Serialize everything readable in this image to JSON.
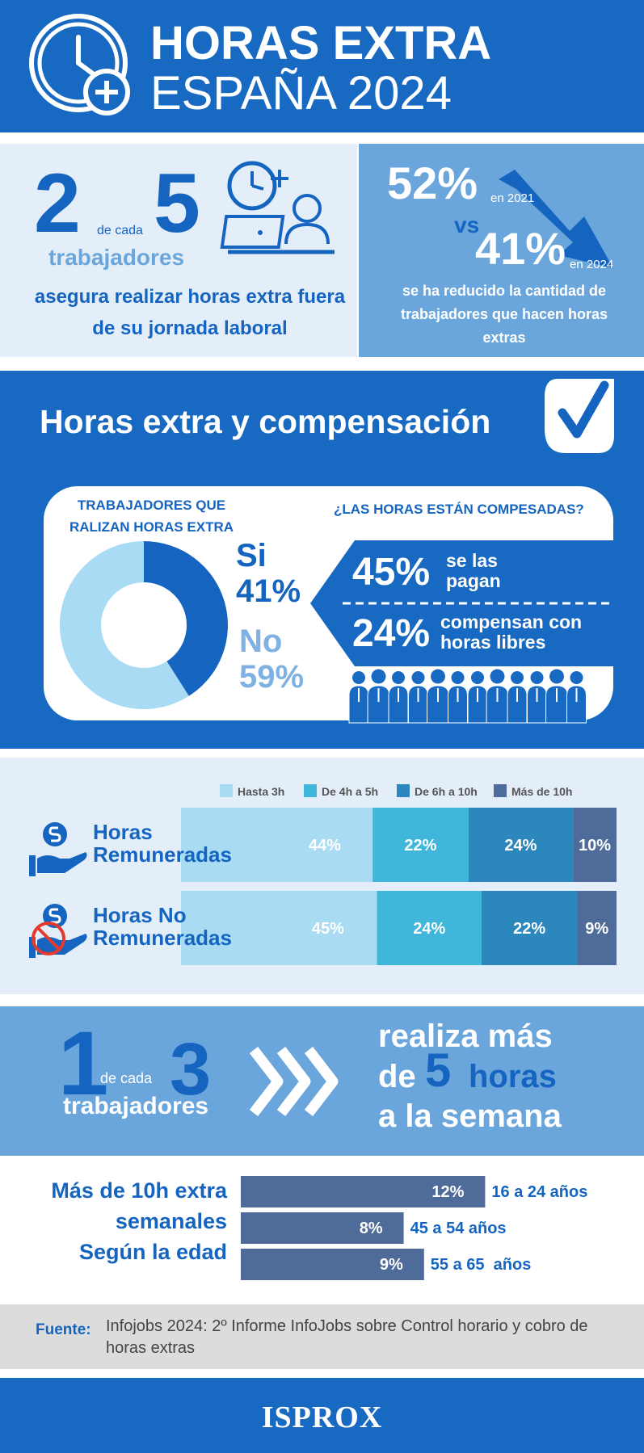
{
  "header": {
    "title_line1": "HORAS EXTRA",
    "title_line2": "ESPAÑA 2024"
  },
  "stat_workers": {
    "number_a": "2",
    "connector": "de cada",
    "number_b": "5",
    "subject": "trabajadores",
    "text": "asegura realizar horas extra fuera de su jornada laboral"
  },
  "trend": {
    "value_2021": "52%",
    "label_2021": "en 2021",
    "vs": "vs",
    "value_2024": "41%",
    "label_2024": "en 2024",
    "text": "se ha reducido la cantidad de trabajadores que hacen horas extras"
  },
  "section_title": "Horas extra y compensación",
  "compensation": {
    "title": "¿LAS HORAS ESTÁN COMPESADAS?",
    "items": [
      {
        "value": "45%",
        "label": "se las pagan"
      },
      {
        "value": "24%",
        "label": "compensan con horas libres"
      }
    ]
  },
  "stat_weekly": {
    "number_a": "1",
    "connector": "de cada",
    "number_b": "3",
    "subject": "trabajadores",
    "line1": "realiza más",
    "line2_de": "de",
    "line2_number": "5",
    "line2_horas": "horas",
    "line3": "a la semana"
  },
  "source": {
    "label": "Fuente:",
    "text": "Infojobs 2024: 2º Informe InfoJobs sobre Control horario y cobro de horas extras"
  },
  "footer": {
    "brand": "ISPROX"
  },
  "chart_data": [
    {
      "type": "donut",
      "title": "TRABAJADORES QUE RALIZAN HORAS EXTRA",
      "categories": [
        "Si",
        "No"
      ],
      "values": [
        41,
        59
      ],
      "value_labels": [
        "41%",
        "59%"
      ],
      "colors": [
        "#1565c0",
        "#a9dcf4"
      ],
      "label_colors": [
        "#1565c0",
        "#7fb2e2"
      ]
    },
    {
      "type": "stacked-bar",
      "orientation": "horizontal",
      "categories": [
        "Horas Remuneradas",
        "Horas No Remuneradas"
      ],
      "series": [
        {
          "name": "Hasta 3h",
          "color": "#a9dcf3",
          "values": [
            44,
            45
          ],
          "value_labels": [
            "44%",
            "45%"
          ]
        },
        {
          "name": "De 4h a 5h",
          "color": "#3fb6da",
          "values": [
            22,
            24
          ],
          "value_labels": [
            "22%",
            "24%"
          ]
        },
        {
          "name": "De 6h a 10h",
          "color": "#2b87bc",
          "values": [
            24,
            22
          ],
          "value_labels": [
            "24%",
            "22%"
          ]
        },
        {
          "name": "Más de 10h",
          "color": "#4f6b99",
          "values": [
            10,
            9
          ],
          "value_labels": [
            "10%",
            "9%"
          ]
        }
      ]
    },
    {
      "type": "bar",
      "orientation": "horizontal",
      "title": [
        "Más de 10h extra",
        "semanales",
        "Según la edad"
      ],
      "categories": [
        "16 a 24 años",
        "45 a 54 años",
        "55 a 65  años"
      ],
      "values": [
        12,
        8,
        9
      ],
      "value_labels": [
        "12%",
        "8%",
        "9%"
      ],
      "color": "#4f6b99"
    }
  ]
}
